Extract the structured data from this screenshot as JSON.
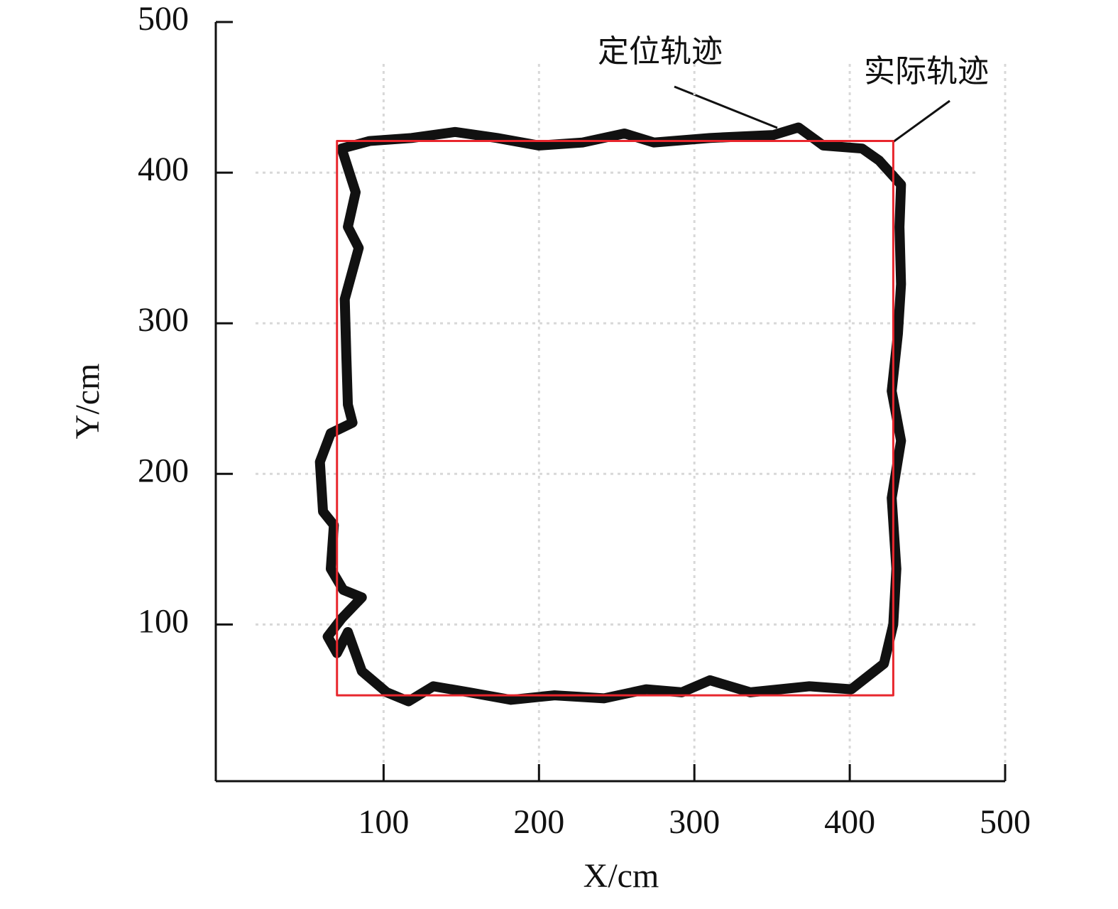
{
  "chart_data": {
    "type": "line",
    "xlabel": "X/cm",
    "ylabel": "Y/cm",
    "xlim": [
      -8,
      500
    ],
    "ylim": [
      -4,
      500
    ],
    "xticks": [
      100,
      200,
      300,
      400,
      500
    ],
    "yticks": [
      100,
      200,
      300,
      400,
      500
    ],
    "grid": true,
    "series": [
      {
        "name": "定位轨迹",
        "color": "#111111",
        "x": [
          77,
          86,
          102,
          116,
          132,
          155,
          182,
          210,
          242,
          269,
          292,
          310,
          336,
          374,
          401,
          422,
          428,
          430,
          427,
          433,
          427,
          431,
          433,
          432,
          433,
          419,
          408,
          383,
          367,
          351,
          310,
          274,
          255,
          228,
          200,
          173,
          146,
          118,
          91,
          73,
          82,
          77,
          84,
          75,
          76,
          77,
          80,
          66,
          59,
          61,
          68,
          66,
          74,
          86,
          73,
          64,
          70,
          77
        ],
        "values": [
          95,
          69,
          55,
          49,
          59,
          55,
          50,
          53,
          51,
          57,
          55,
          63,
          55,
          59,
          57,
          74,
          100,
          137,
          184,
          222,
          255,
          293,
          326,
          364,
          392,
          408,
          416,
          418,
          430,
          425,
          423,
          420,
          426,
          420,
          418,
          423,
          427,
          423,
          421,
          416,
          387,
          364,
          350,
          316,
          279,
          246,
          234,
          227,
          208,
          175,
          166,
          137,
          123,
          118,
          104,
          92,
          81,
          95
        ]
      },
      {
        "name": "实际轨迹",
        "color": "#e8262d",
        "x": [
          70,
          428,
          428,
          70,
          70
        ],
        "values": [
          53,
          53,
          421,
          421,
          53
        ]
      }
    ]
  }
}
